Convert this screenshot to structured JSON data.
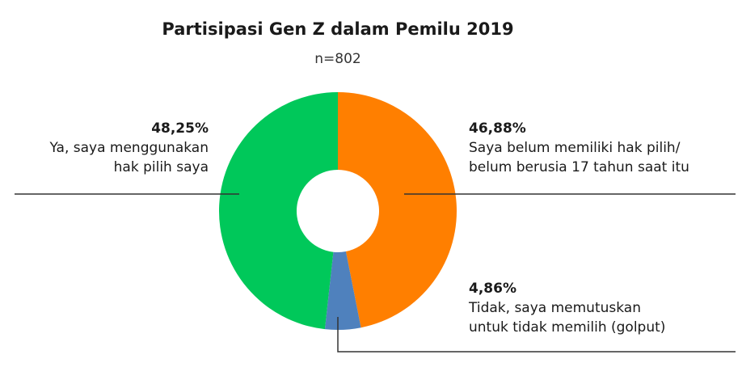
{
  "chart_data": {
    "type": "pie",
    "style": "donut",
    "title": "Partisipasi Gen Z dalam Pemilu 2019",
    "subtitle": "n=802",
    "slices": [
      {
        "label": "Saya belum memiliki hak pilih/ belum berusia 17 tahun saat itu",
        "line1": "Saya belum memiliki hak pilih/",
        "line2": "belum berusia 17 tahun saat itu",
        "value": 46.88,
        "value_label": "46,88%",
        "color": "#FF7F00"
      },
      {
        "label": "Tidak, saya memutuskan untuk tidak memilih (golput)",
        "line1": "Tidak, saya memutuskan",
        "line2": "untuk tidak memilih (golput)",
        "value": 4.86,
        "value_label": "4,86%",
        "color": "#4F81BD"
      },
      {
        "label": "Ya, saya menggunakan hak pilih saya",
        "line1": "Ya, saya menggunakan",
        "line2": "hak pilih saya",
        "value": 48.25,
        "value_label": "48,25%",
        "color": "#00C85A"
      }
    ]
  }
}
